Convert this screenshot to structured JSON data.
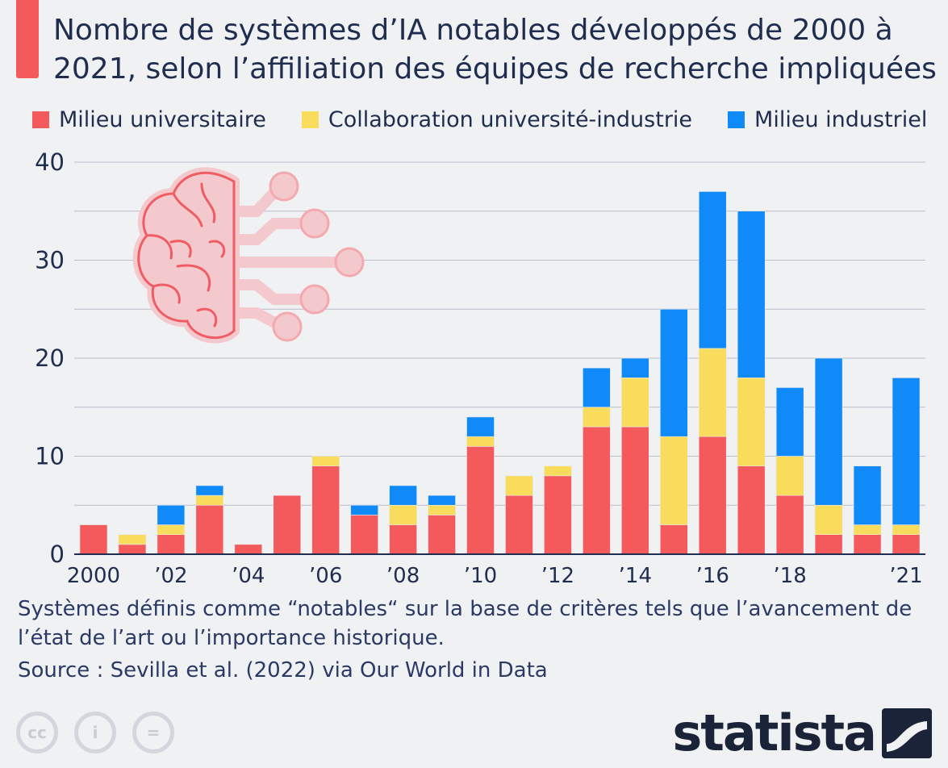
{
  "title": "Nombre de systèmes d’IA notables développés de 2000 à 2021, selon l’affiliation des équipes de recherche impliquées",
  "legend": {
    "academia": "Milieu universitaire",
    "collab": "Collaboration université-industrie",
    "industry": "Milieu industriel"
  },
  "colors": {
    "academia": "#f4595c",
    "collab": "#f9dc5c",
    "industry": "#0f8af8",
    "accent": "#f4595c"
  },
  "chart_data": {
    "type": "bar",
    "stacked": true,
    "title": "Nombre de systèmes d’IA notables développés de 2000 à 2021, selon l’affiliation des équipes de recherche impliquées",
    "categories": [
      "2000",
      "2001",
      "2002",
      "2003",
      "2004",
      "2005",
      "2006",
      "2007",
      "2008",
      "2009",
      "2010",
      "2011",
      "2012",
      "2013",
      "2014",
      "2015",
      "2016",
      "2017",
      "2018",
      "2019",
      "2020",
      "2021"
    ],
    "tick_labels": [
      "2000",
      "",
      "’02",
      "",
      "’04",
      "",
      "’06",
      "",
      "’08",
      "",
      "’10",
      "",
      "’12",
      "",
      "’14",
      "",
      "’16",
      "",
      "’18",
      "",
      "",
      "’21"
    ],
    "series": [
      {
        "name": "Milieu universitaire",
        "values": [
          3,
          1,
          2,
          5,
          1,
          6,
          9,
          4,
          3,
          4,
          11,
          6,
          8,
          13,
          13,
          3,
          12,
          9,
          6,
          2,
          2,
          2
        ]
      },
      {
        "name": "Collaboration université-industrie",
        "values": [
          0,
          1,
          1,
          1,
          0,
          0,
          1,
          0,
          2,
          1,
          1,
          2,
          1,
          2,
          5,
          9,
          9,
          9,
          4,
          3,
          1,
          1
        ]
      },
      {
        "name": "Milieu industriel",
        "values": [
          0,
          0,
          2,
          1,
          0,
          0,
          0,
          1,
          2,
          1,
          2,
          0,
          0,
          4,
          2,
          13,
          16,
          17,
          7,
          15,
          6,
          15
        ]
      }
    ],
    "yticks": [
      0,
      10,
      20,
      30,
      40
    ],
    "ylim": [
      0,
      40
    ],
    "xlabel": "",
    "ylabel": "",
    "grid": true,
    "legend_position": "top"
  },
  "footer": {
    "note": "Systèmes définis comme “notables“ sur la base de critères tels que l’avancement de l’état de l’art ou l’importance historique.",
    "source": "Source : Sevilla et al. (2022) via Our World in Data",
    "license_icons": [
      "cc-icon",
      "by-icon",
      "nd-icon"
    ],
    "license_labels": [
      "cc",
      "i",
      "="
    ],
    "logo": "statista"
  }
}
